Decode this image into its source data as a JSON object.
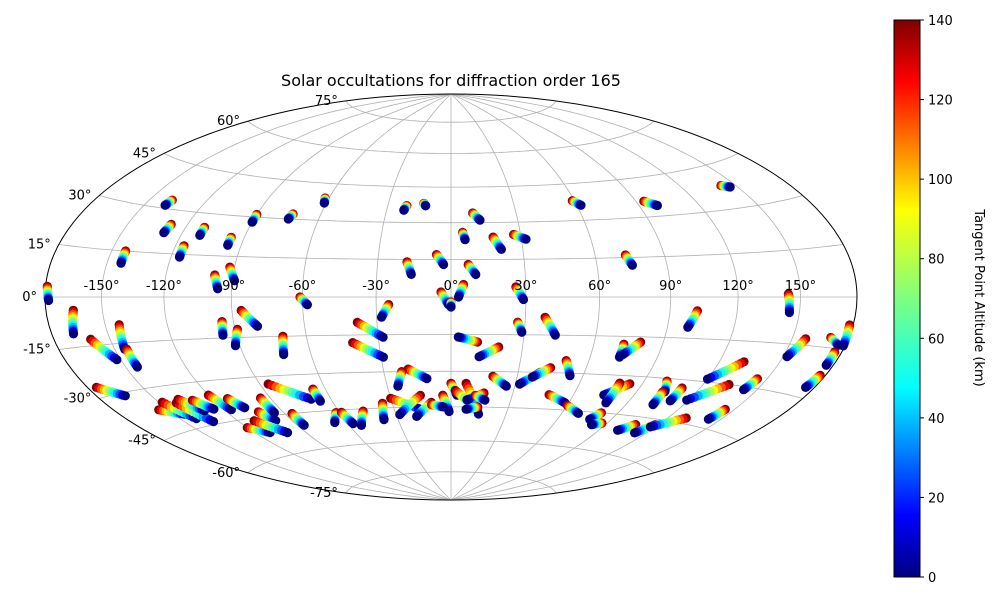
{
  "chart_data": {
    "type": "scatter",
    "projection": "hammer",
    "title": "Solar occultations for diffraction order 165",
    "lon_tick_labels": [
      "-150°",
      "-120°",
      "-90°",
      "-60°",
      "-30°",
      "0°",
      "30°",
      "60°",
      "90°",
      "120°",
      "150°"
    ],
    "lon_ticks": [
      -150,
      -120,
      -90,
      -60,
      -30,
      0,
      30,
      60,
      90,
      120,
      150
    ],
    "lat_tick_labels": [
      "-75°",
      "-60°",
      "-45°",
      "-30°",
      "-15°",
      "0°",
      "15°",
      "30°",
      "45°",
      "60°",
      "75°"
    ],
    "lat_ticks": [
      -75,
      -60,
      -45,
      -30,
      -15,
      0,
      15,
      30,
      45,
      60,
      75
    ],
    "grid": true,
    "colorbar": {
      "label": "Tangent Point Altitude (km)",
      "range": [
        0,
        140
      ],
      "tick_labels": [
        "0",
        "20",
        "40",
        "60",
        "80",
        "100",
        "120",
        "140"
      ],
      "ticks": [
        0,
        20,
        40,
        60,
        80,
        100,
        120,
        140
      ],
      "colormap": "jet",
      "position": "right"
    },
    "tracks": [
      [
        -179,
        3,
        -178,
        -1
      ],
      [
        -165,
        -4,
        -168,
        -11
      ],
      [
        -160,
        -13,
        -152,
        -20
      ],
      [
        -175,
        -27,
        -164,
        -31
      ],
      [
        -143,
        -9,
        -145,
        -17
      ],
      [
        -144,
        -17,
        -144,
        -23
      ],
      [
        -143,
        15,
        -143,
        11
      ],
      [
        -138,
        33,
        -139,
        31
      ],
      [
        -128,
        25,
        -129,
        22
      ],
      [
        -155,
        -37,
        -144,
        -40
      ],
      [
        -148,
        -35,
        -141,
        -42
      ],
      [
        -141,
        -36,
        -134,
        -44
      ],
      [
        -138,
        -35,
        -131,
        -40
      ],
      [
        -131,
        -36,
        -125,
        -40
      ],
      [
        -120,
        -35,
        -116,
        -41
      ],
      [
        -112,
        -37,
        -108,
        -41
      ],
      [
        -120,
        -48,
        -111,
        -51
      ],
      [
        -103,
        -43,
        -99,
        -47
      ],
      [
        -111,
        -46,
        -101,
        -52
      ],
      [
        -116,
        18,
        -116,
        14
      ],
      [
        -111,
        25,
        -111,
        22
      ],
      [
        -96,
        22,
        -96,
        19
      ],
      [
        -98,
        8,
        -96,
        3
      ],
      [
        -90,
        31,
        -90,
        28
      ],
      [
        -92,
        11,
        -89,
        6
      ],
      [
        -86,
        -5,
        -80,
        -11
      ],
      [
        -89,
        -12,
        -92,
        -18
      ],
      [
        -95,
        -9,
        -96,
        -14
      ],
      [
        -86,
        -33,
        -70,
        -40
      ],
      [
        -95,
        -38,
        -95,
        -44
      ],
      [
        -86,
        -45,
        -86,
        -50
      ],
      [
        -73,
        32,
        -74,
        30
      ],
      [
        -62,
        39,
        -61,
        37
      ],
      [
        -70,
        -15,
        -72,
        -22
      ],
      [
        -66,
        -36,
        -66,
        -41
      ],
      [
        -62,
        -46,
        -67,
        -50
      ],
      [
        -61,
        0,
        -58,
        -3
      ],
      [
        -59,
        -46,
        -57,
        -51
      ],
      [
        -47,
        -46,
        -53,
        -52
      ],
      [
        -38,
        -10,
        -28,
        -16
      ],
      [
        -41,
        -18,
        -29,
        -24
      ],
      [
        -30,
        -41,
        -16,
        -46
      ],
      [
        -35,
        -43,
        -38,
        -50
      ],
      [
        -21,
        37,
        -22,
        35
      ],
      [
        -13,
        38,
        -12,
        37
      ],
      [
        -18,
        14,
        -16,
        9
      ],
      [
        -6,
        17,
        -3,
        13
      ],
      [
        -25,
        -3,
        -28,
        -8
      ],
      [
        -19,
        -29,
        -11,
        -33
      ],
      [
        -22,
        -30,
        -25,
        -36
      ],
      [
        -15,
        -40,
        -28,
        -48
      ],
      [
        -10,
        -43,
        -19,
        -49
      ],
      [
        -4,
        2,
        -1,
        -3
      ],
      [
        0,
        -2,
        0,
        -4
      ],
      [
        5,
        26,
        6,
        23
      ],
      [
        10,
        34,
        13,
        31
      ],
      [
        7,
        13,
        10,
        9
      ],
      [
        5,
        5,
        3,
        0
      ],
      [
        0,
        -35,
        3,
        -40
      ],
      [
        -4,
        -40,
        -1,
        -47
      ],
      [
        2,
        -38,
        12,
        -45
      ],
      [
        7,
        -35,
        15,
        -48
      ],
      [
        16,
        -39,
        8,
        -42
      ],
      [
        -10,
        -44,
        -4,
        -45
      ],
      [
        14,
        -45,
        8,
        -46
      ],
      [
        19,
        -32,
        26,
        -36
      ],
      [
        12,
        -40,
        17,
        -42
      ],
      [
        11,
        -18,
        3,
        -16
      ],
      [
        20,
        -20,
        12,
        -24
      ],
      [
        27,
        25,
        32,
        23
      ],
      [
        18,
        24,
        21,
        19
      ],
      [
        26,
        4,
        29,
        -1
      ],
      [
        27,
        -10,
        29,
        -14
      ],
      [
        38,
        -8,
        43,
        -15
      ],
      [
        40,
        -30,
        32,
        -35
      ],
      [
        44,
        -28,
        37,
        -32
      ],
      [
        50,
        -25,
        54,
        -31
      ],
      [
        59,
        38,
        62,
        36
      ],
      [
        48,
        -39,
        58,
        -42
      ],
      [
        73,
        16,
        75,
        12
      ],
      [
        60,
        -43,
        69,
        -46
      ],
      [
        73,
        -18,
        73,
        -23
      ],
      [
        80,
        -17,
        74,
        -22
      ],
      [
        84,
        -33,
        75,
        -38
      ],
      [
        79,
        -33,
        79,
        -41
      ],
      [
        81,
        -45,
        78,
        -48
      ],
      [
        87,
        -49,
        82,
        -50
      ],
      [
        94,
        36,
        99,
        34
      ],
      [
        102,
        -5,
        99,
        -11
      ],
      [
        101,
        -31,
        104,
        -35
      ],
      [
        103,
        -35,
        104,
        -40
      ],
      [
        107,
        -48,
        101,
        -51
      ],
      [
        111,
        -33,
        111,
        -38
      ],
      [
        132,
        -22,
        120,
        -29
      ],
      [
        133,
        -30,
        119,
        -37
      ],
      [
        118,
        -47,
        113,
        -51
      ],
      [
        130,
        -43,
        117,
        -48
      ],
      [
        142,
        38,
        146,
        37
      ],
      [
        144,
        1,
        145,
        -5
      ],
      [
        145,
        -27,
        143,
        -31
      ],
      [
        145,
        -38,
        143,
        -42
      ],
      [
        157,
        -13,
        152,
        -19
      ],
      [
        178,
        -8,
        179,
        -14
      ],
      [
        170,
        -12,
        176,
        -14
      ],
      [
        176,
        -16,
        176,
        -20
      ],
      [
        177,
        -23,
        175,
        -27
      ]
    ]
  }
}
